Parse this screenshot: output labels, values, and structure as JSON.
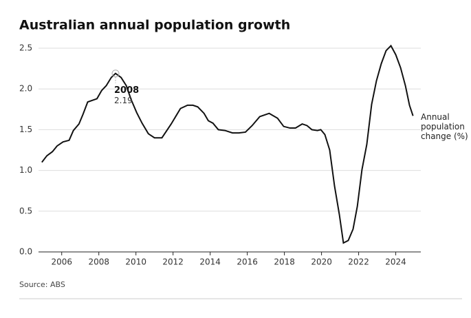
{
  "chart_data": {
    "type": "line",
    "title": "Australian annual population growth",
    "source": "Source: ABS",
    "x": [
      2004.93,
      2005.2,
      2005.5,
      2005.75,
      2006.07,
      2006.4,
      2006.63,
      2006.93,
      2007.15,
      2007.4,
      2007.9,
      2008.15,
      2008.4,
      2008.67,
      2008.9,
      2009.2,
      2009.48,
      2009.74,
      2010.04,
      2010.33,
      2010.67,
      2011.0,
      2011.4,
      2011.9,
      2012.4,
      2012.78,
      2013.07,
      2013.33,
      2013.67,
      2013.9,
      2014.15,
      2014.44,
      2014.8,
      2015.2,
      2015.55,
      2015.9,
      2016.26,
      2016.67,
      2017.18,
      2017.63,
      2017.96,
      2018.3,
      2018.6,
      2018.96,
      2019.22,
      2019.48,
      2019.78,
      2019.96,
      2020.18,
      2020.44,
      2020.7,
      2020.96,
      2021.18,
      2021.44,
      2021.7,
      2021.93,
      2022.18,
      2022.44,
      2022.7,
      2022.96,
      2023.22,
      2023.48,
      2023.74,
      2024.0,
      2024.26,
      2024.52,
      2024.74,
      2024.93
    ],
    "series": [
      {
        "name": "Annual population change (%)",
        "color": "#111111",
        "values": [
          1.1,
          1.18,
          1.23,
          1.3,
          1.35,
          1.37,
          1.49,
          1.57,
          1.69,
          1.84,
          1.88,
          1.98,
          2.04,
          2.14,
          2.19,
          2.14,
          2.04,
          1.87,
          1.71,
          1.58,
          1.45,
          1.4,
          1.4,
          1.57,
          1.76,
          1.8,
          1.8,
          1.78,
          1.7,
          1.61,
          1.58,
          1.5,
          1.49,
          1.46,
          1.46,
          1.47,
          1.55,
          1.66,
          1.7,
          1.64,
          1.54,
          1.52,
          1.52,
          1.57,
          1.55,
          1.5,
          1.49,
          1.5,
          1.44,
          1.25,
          0.81,
          0.46,
          0.11,
          0.14,
          0.28,
          0.56,
          1.01,
          1.32,
          1.81,
          2.1,
          2.31,
          2.47,
          2.53,
          2.42,
          2.26,
          2.04,
          1.8,
          1.67
        ]
      }
    ],
    "annotation": {
      "label": "2008",
      "x": 2008.9,
      "value": 2.19
    },
    "xlim": [
      2004.75,
      2025.35
    ],
    "xticks": [
      2006,
      2008,
      2010,
      2012,
      2014,
      2016,
      2018,
      2020,
      2022,
      2024
    ],
    "ylim": [
      0,
      2.5
    ],
    "yticks": [
      {
        "value": 0,
        "label": "0.0"
      },
      0.5,
      {
        "value": 1,
        "label": "1.0"
      },
      1.5,
      {
        "value": 2,
        "label": "2.0"
      },
      2.5
    ],
    "grid": true
  }
}
